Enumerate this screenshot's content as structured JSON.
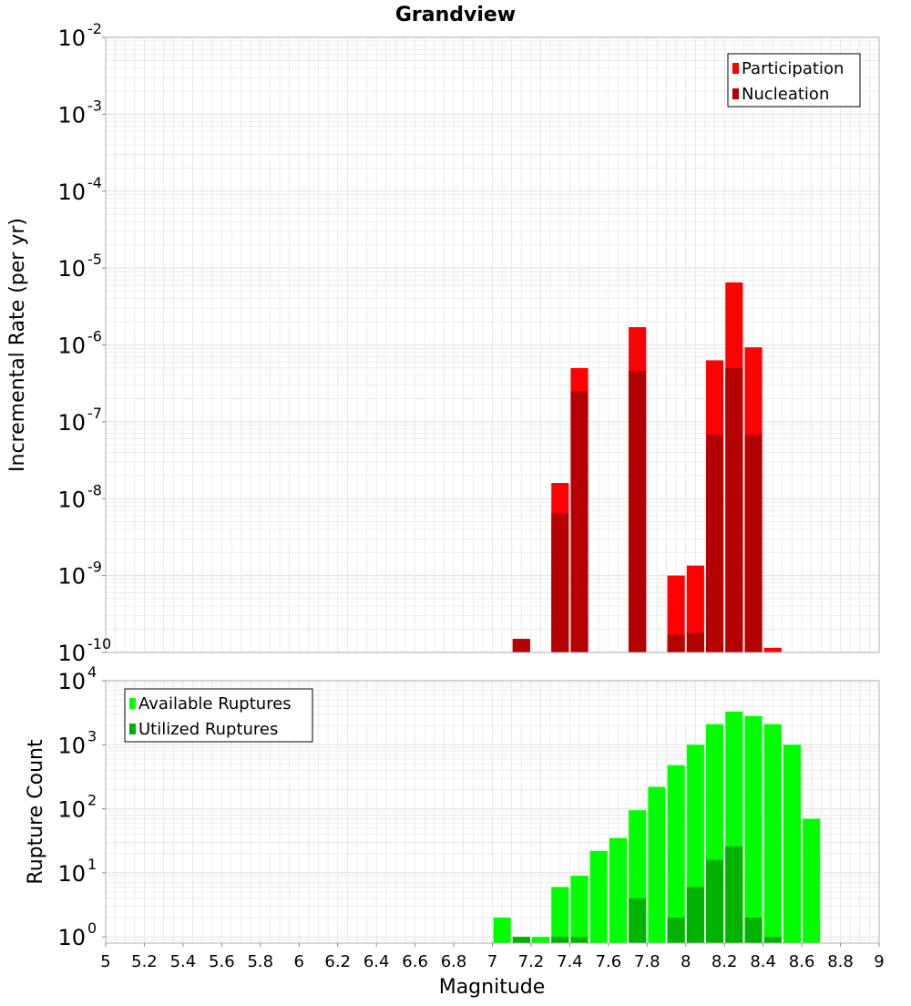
{
  "figure": {
    "title": "Grandview",
    "xlabel": "Magnitude"
  },
  "colors": {
    "participation": "#ff0000",
    "nucleation": "#b30000",
    "available": "#00ff00",
    "utilized": "#00b300",
    "grid": "#e6e6e6",
    "frame": "#b0b0b0"
  },
  "chart_data": [
    {
      "type": "bar",
      "panel": "top",
      "title": "Grandview",
      "xlabel": "Magnitude",
      "ylabel": "Incremental Rate (per yr)",
      "xlim": [
        5,
        9
      ],
      "ylim": [
        1e-10,
        0.01
      ],
      "yscale": "log",
      "grid": true,
      "legend_position": "top-right",
      "x": [
        7.15,
        7.35,
        7.45,
        7.75,
        7.95,
        8.05,
        8.15,
        8.25,
        8.35,
        8.45
      ],
      "series": [
        {
          "name": "Participation",
          "values": [
            1.5e-10,
            1.6e-08,
            5e-07,
            1.7e-06,
            1e-09,
            1.35e-09,
            6.3e-07,
            6.5e-06,
            9.3e-07,
            1.15e-10
          ]
        },
        {
          "name": "Nucleation",
          "values": [
            1.5e-10,
            6.5e-09,
            2.5e-07,
            4.6e-07,
            1.7e-10,
            1.8e-10,
            6.8e-08,
            5e-07,
            6.8e-08,
            1e-10
          ]
        }
      ]
    },
    {
      "type": "bar",
      "panel": "bottom",
      "xlabel": "Magnitude",
      "ylabel": "Rupture Count",
      "xlim": [
        5,
        9
      ],
      "ylim": [
        0.8,
        10000
      ],
      "yscale": "log",
      "grid": true,
      "legend_position": "top-left",
      "x": [
        7.05,
        7.15,
        7.25,
        7.35,
        7.45,
        7.55,
        7.65,
        7.75,
        7.85,
        7.95,
        8.05,
        8.15,
        8.25,
        8.35,
        8.45,
        8.55,
        8.65
      ],
      "series": [
        {
          "name": "Available Ruptures",
          "values": [
            2,
            1,
            1,
            6,
            9,
            22,
            35,
            95,
            220,
            480,
            1000,
            2100,
            3300,
            2800,
            2100,
            1000,
            70
          ]
        },
        {
          "name": "Utilized Ruptures",
          "values": [
            null,
            1,
            null,
            1,
            1,
            null,
            null,
            4,
            null,
            2,
            6,
            16,
            26,
            2,
            1,
            null,
            null
          ]
        }
      ]
    }
  ]
}
